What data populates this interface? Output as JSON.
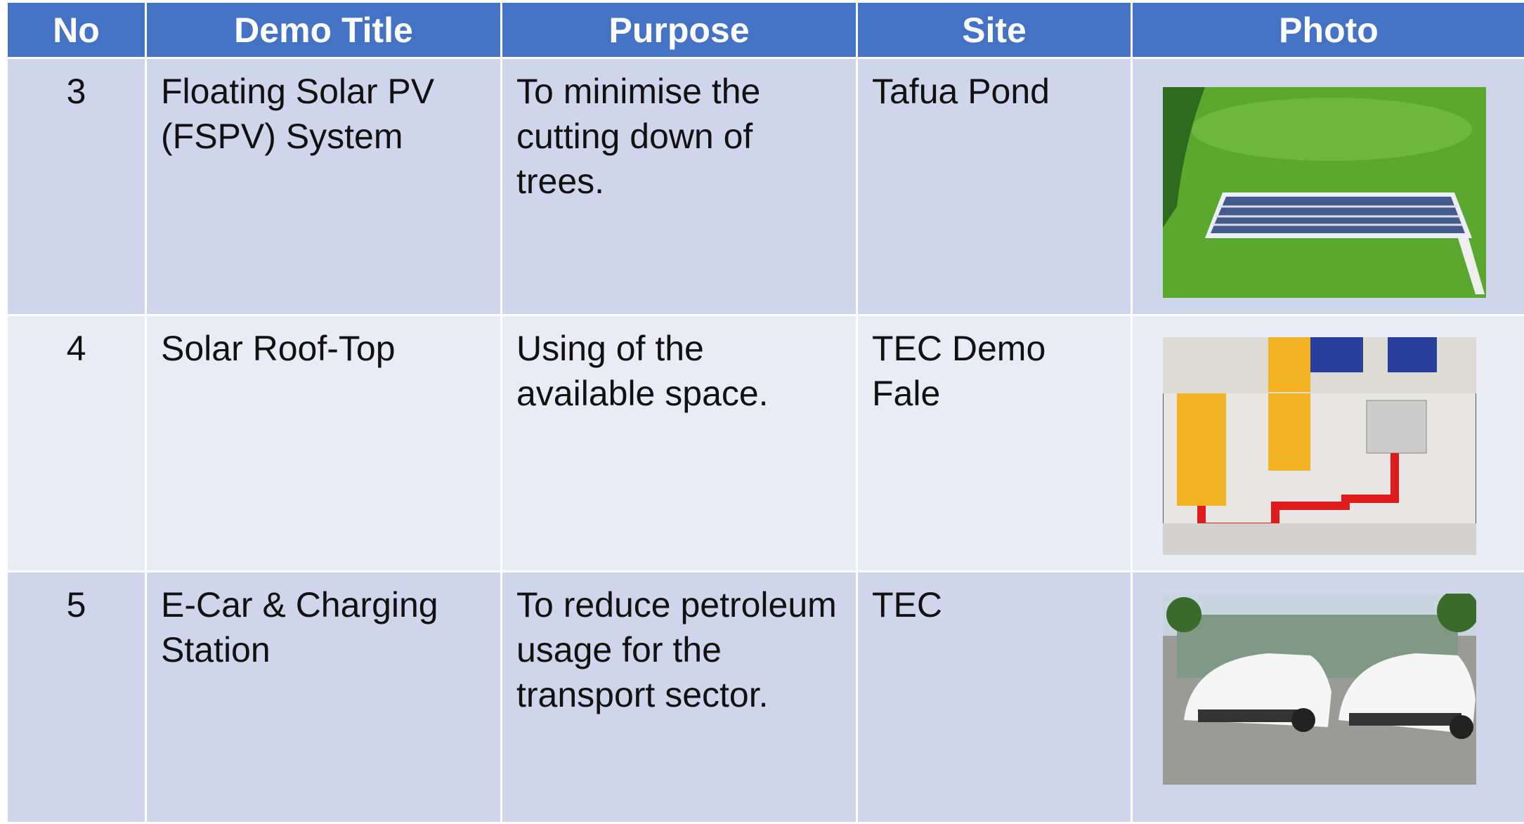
{
  "table": {
    "header": [
      "No",
      "Demo Title",
      "Purpose",
      "Site",
      "Photo"
    ],
    "rows": [
      [
        "3",
        "Floating Solar PV (FSPV) System",
        "To minimise the cutting down of trees.",
        "Tafua Pond"
      ],
      [
        "4",
        "Solar Roof-Top",
        "Using of the available space.",
        "TEC Demo Fale"
      ],
      [
        "5",
        "E-Car & Charging Station",
        "To reduce petroleum usage for the transport sector.",
        "TEC"
      ]
    ]
  }
}
